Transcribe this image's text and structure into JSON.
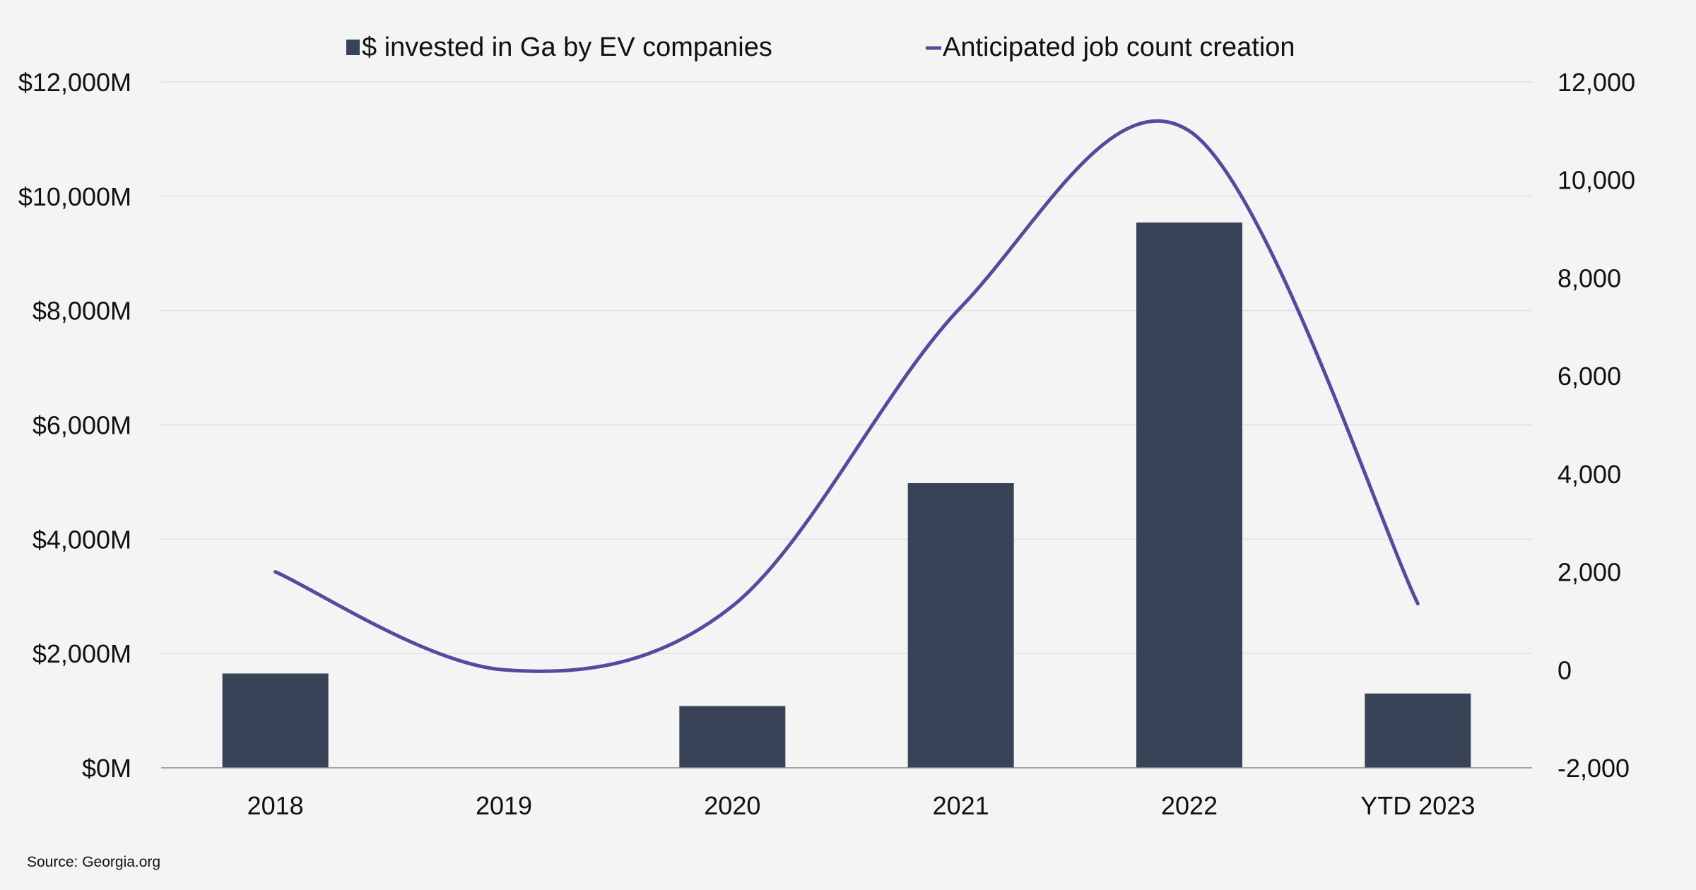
{
  "chart_data": {
    "type": "bar+line",
    "categories": [
      "2018",
      "2019",
      "2020",
      "2021",
      "2022",
      "YTD 2023"
    ],
    "series": [
      {
        "name": "$ invested in Ga by EV companies",
        "type": "bar",
        "axis": "left",
        "color": "#394357",
        "values": [
          1650,
          0,
          1080,
          4980,
          9540,
          1300
        ]
      },
      {
        "name": "Anticipated job count creation",
        "type": "line",
        "axis": "right",
        "smooth": true,
        "color": "#574a9e",
        "values": [
          2000,
          0,
          1300,
          7400,
          11000,
          1350
        ]
      }
    ],
    "y_left": {
      "min": 0,
      "max": 12000,
      "step": 2000,
      "tick_labels": [
        "$0M",
        "$2,000M",
        "$4,000M",
        "$6,000M",
        "$8,000M",
        "$10,000M",
        "$12,000M"
      ]
    },
    "y_right": {
      "min": -2000,
      "max": 12000,
      "step": 2000,
      "tick_labels": [
        "-2,000",
        "0",
        "2,000",
        "4,000",
        "6,000",
        "8,000",
        "10,000",
        "12,000"
      ]
    },
    "grid": true,
    "legend_position": "top-center",
    "source": "Source: Georgia.org"
  }
}
